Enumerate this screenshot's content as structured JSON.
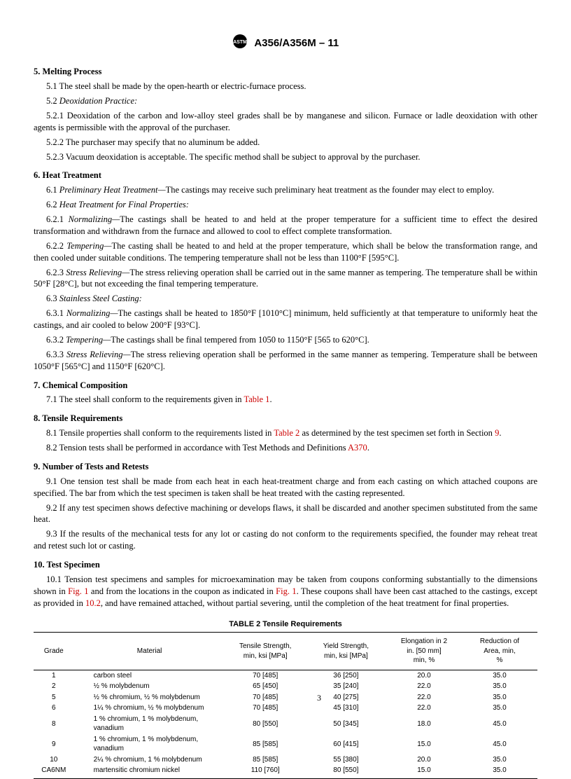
{
  "header": {
    "standard_number": "A356/A356M – 11"
  },
  "sections": {
    "s5": {
      "title": "5.  Melting Process",
      "p5_1": "5.1  The steel shall be made by the open-hearth or electric-furnace process.",
      "p5_2_title": "5.2  ",
      "p5_2_label": "Deoxidation Practice:",
      "p5_2_1": "5.2.1  Deoxidation of the carbon and low-alloy steel grades shall be by manganese and silicon. Furnace or ladle deoxidation with other agents is permissible with the approval of the purchaser.",
      "p5_2_2": "5.2.2  The purchaser may specify that no aluminum be added.",
      "p5_2_3": "5.2.3  Vacuum deoxidation is acceptable. The specific method shall be subject to approval by the purchaser."
    },
    "s6": {
      "title": "6.  Heat Treatment",
      "p6_1_pre": "6.1  ",
      "p6_1_label": "Preliminary Heat Treatment—",
      "p6_1_body": "The castings may receive such preliminary heat treatment as the founder may elect to employ.",
      "p6_2_pre": "6.2  ",
      "p6_2_label": "Heat Treatment for Final Properties:",
      "p6_2_1_pre": "6.2.1  ",
      "p6_2_1_label": "Normalizing—",
      "p6_2_1_body": "The castings shall be heated to and held at the proper temperature for a sufficient time to effect the desired transformation and withdrawn from the furnace and allowed to cool to effect complete transformation.",
      "p6_2_2_pre": "6.2.2  ",
      "p6_2_2_label": "Tempering—",
      "p6_2_2_body": "The casting shall be heated to and held at the proper temperature, which shall be below the transformation range, and then cooled under suitable conditions. The tempering temperature shall not be less than 1100°F [595°C].",
      "p6_2_3_pre": "6.2.3  ",
      "p6_2_3_label": "Stress Relieving—",
      "p6_2_3_body": "The stress relieving operation shall be carried out in the same manner as tempering. The temperature shall be within 50°F [28°C], but not exceeding the final tempering temperature.",
      "p6_3_pre": "6.3  ",
      "p6_3_label": "Stainless Steel Casting:",
      "p6_3_1_pre": "6.3.1  ",
      "p6_3_1_label": "Normalizing—",
      "p6_3_1_body": "The castings shall be heated to 1850°F [1010°C] minimum, held sufficiently at that temperature to uniformly heat the castings, and air cooled to below 200°F [93°C].",
      "p6_3_2_pre": "6.3.2  ",
      "p6_3_2_label": "Tempering—",
      "p6_3_2_body": "The castings shall be final tempered from 1050 to 1150°F [565 to 620°C].",
      "p6_3_3_pre": "6.3.3  ",
      "p6_3_3_label": "Stress Relieving—",
      "p6_3_3_body": "The stress relieving operation shall be performed in the same manner as tempering. Temperature shall be between 1050°F [565°C] and 1150°F [620°C]."
    },
    "s7": {
      "title": "7.  Chemical Composition",
      "p7_1_a": "7.1  The steel shall conform to the requirements given in ",
      "p7_1_ref": "Table 1",
      "p7_1_b": "."
    },
    "s8": {
      "title": "8.  Tensile Requirements",
      "p8_1_a": "8.1  Tensile properties shall conform to the requirements listed in ",
      "p8_1_ref1": "Table 2",
      "p8_1_b": " as determined by the test specimen set forth in Section ",
      "p8_1_ref2": "9",
      "p8_1_c": ".",
      "p8_2_a": "8.2  Tension tests shall be performed in accordance with Test Methods and Definitions ",
      "p8_2_ref": "A370",
      "p8_2_b": "."
    },
    "s9": {
      "title": "9.  Number of Tests and Retests",
      "p9_1": "9.1  One tension test shall be made from each heat in each heat-treatment charge and from each casting on which attached coupons are specified. The bar from which the test specimen is taken shall be heat treated with the casting represented.",
      "p9_2": "9.2  If any test specimen shows defective machining or develops flaws, it shall be discarded and another specimen substituted from the same heat.",
      "p9_3": "9.3  If the results of the mechanical tests for any lot or casting do not conform to the requirements specified, the founder may reheat treat and retest such lot or casting."
    },
    "s10": {
      "title": "10.  Test Specimen",
      "p10_1_a": "10.1  Tension test specimens and samples for microexamination may be taken from coupons conforming substantially to the dimensions shown in ",
      "p10_1_ref1": "Fig. 1",
      "p10_1_b": " and from the locations in the coupon as indicated in ",
      "p10_1_ref2": "Fig. 1",
      "p10_1_c": ". These coupons shall have been cast attached to the castings, except as provided in ",
      "p10_1_ref3": "10.2",
      "p10_1_d": ", and have remained attached, without partial severing, until the completion of the heat treatment for final properties."
    }
  },
  "table2": {
    "caption": "TABLE 2 Tensile Requirements",
    "columns": {
      "grade": "Grade",
      "material": "Material",
      "tensile": "Tensile Strength,\nmin, ksi [MPa]",
      "yield": "Yield Strength,\nmin, ksi [MPa]",
      "elong": "Elongation in 2\nin. [50 mm]\nmin, %",
      "reduct": "Reduction of\nArea, min,\n%"
    },
    "rows": [
      {
        "grade": "1",
        "material": "carbon steel",
        "ts": "70 [485]",
        "ys": "36 [250]",
        "el": "20.0",
        "ra": "35.0"
      },
      {
        "grade": "2",
        "material": "½  % molybdenum",
        "ts": "65 [450]",
        "ys": "35 [240]",
        "el": "22.0",
        "ra": "35.0"
      },
      {
        "grade": "5",
        "material": "½  % chromium, ½  % molybdenum",
        "ts": "70 [485]",
        "ys": "40 [275]",
        "el": "22.0",
        "ra": "35.0"
      },
      {
        "grade": "6",
        "material": "1¼  % chromium, ½  % molybdenum",
        "ts": "70 [485]",
        "ys": "45 [310]",
        "el": "22.0",
        "ra": "35.0"
      },
      {
        "grade": "8",
        "material": "1 % chromium, 1 % molybdenum, vanadium",
        "ts": "80 [550]",
        "ys": "50 [345]",
        "el": "18.0",
        "ra": "45.0"
      },
      {
        "grade": "9",
        "material": "1 % chromium, 1 % molybdenum, vanadium",
        "ts": "85 [585]",
        "ys": "60 [415]",
        "el": "15.0",
        "ra": "45.0"
      },
      {
        "grade": "10",
        "material": "2¼  % chromium, 1 % molybdenum",
        "ts": "85 [585]",
        "ys": "55 [380]",
        "el": "20.0",
        "ra": "35.0"
      },
      {
        "grade": "CA6NM",
        "material": "martensitic chromium nickel",
        "ts": "110 [760]",
        "ys": "80 [550]",
        "el": "15.0",
        "ra": "35.0"
      }
    ]
  },
  "page_number": "3"
}
